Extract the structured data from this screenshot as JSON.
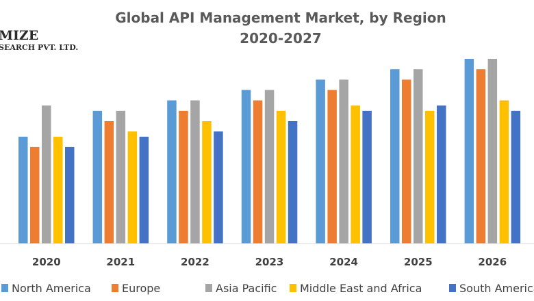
{
  "logo": {
    "line1": "MIZE",
    "line2": "SEARCH PVT. LTD."
  },
  "chart_data": {
    "type": "bar",
    "title": [
      "Global API Management Market, by Region",
      "2020-2027"
    ],
    "categories": [
      "2020",
      "2021",
      "2022",
      "2023",
      "2024",
      "2025",
      "2026"
    ],
    "series": [
      {
        "name": "North America",
        "color": "#5b9bd5",
        "values": [
          10.3,
          12.8,
          13.8,
          14.8,
          15.8,
          16.8,
          17.8
        ]
      },
      {
        "name": "Europe",
        "color": "#ed7d31",
        "values": [
          9.3,
          11.8,
          12.8,
          13.8,
          14.8,
          15.8,
          16.8
        ]
      },
      {
        "name": "Asia Pacific",
        "color": "#a5a5a5",
        "values": [
          13.3,
          12.8,
          13.8,
          14.8,
          15.8,
          16.8,
          17.8
        ]
      },
      {
        "name": "Middle East and Africa",
        "color": "#ffc000",
        "values": [
          10.3,
          10.8,
          11.8,
          12.8,
          13.3,
          12.8,
          13.8
        ]
      },
      {
        "name": "South America",
        "color": "#4472c4",
        "values": [
          9.3,
          10.3,
          10.8,
          11.8,
          12.8,
          13.3,
          12.8
        ]
      }
    ],
    "ylim": [
      0,
      18
    ],
    "grid": false,
    "legend_position": "bottom",
    "xlabel": "",
    "ylabel": ""
  }
}
